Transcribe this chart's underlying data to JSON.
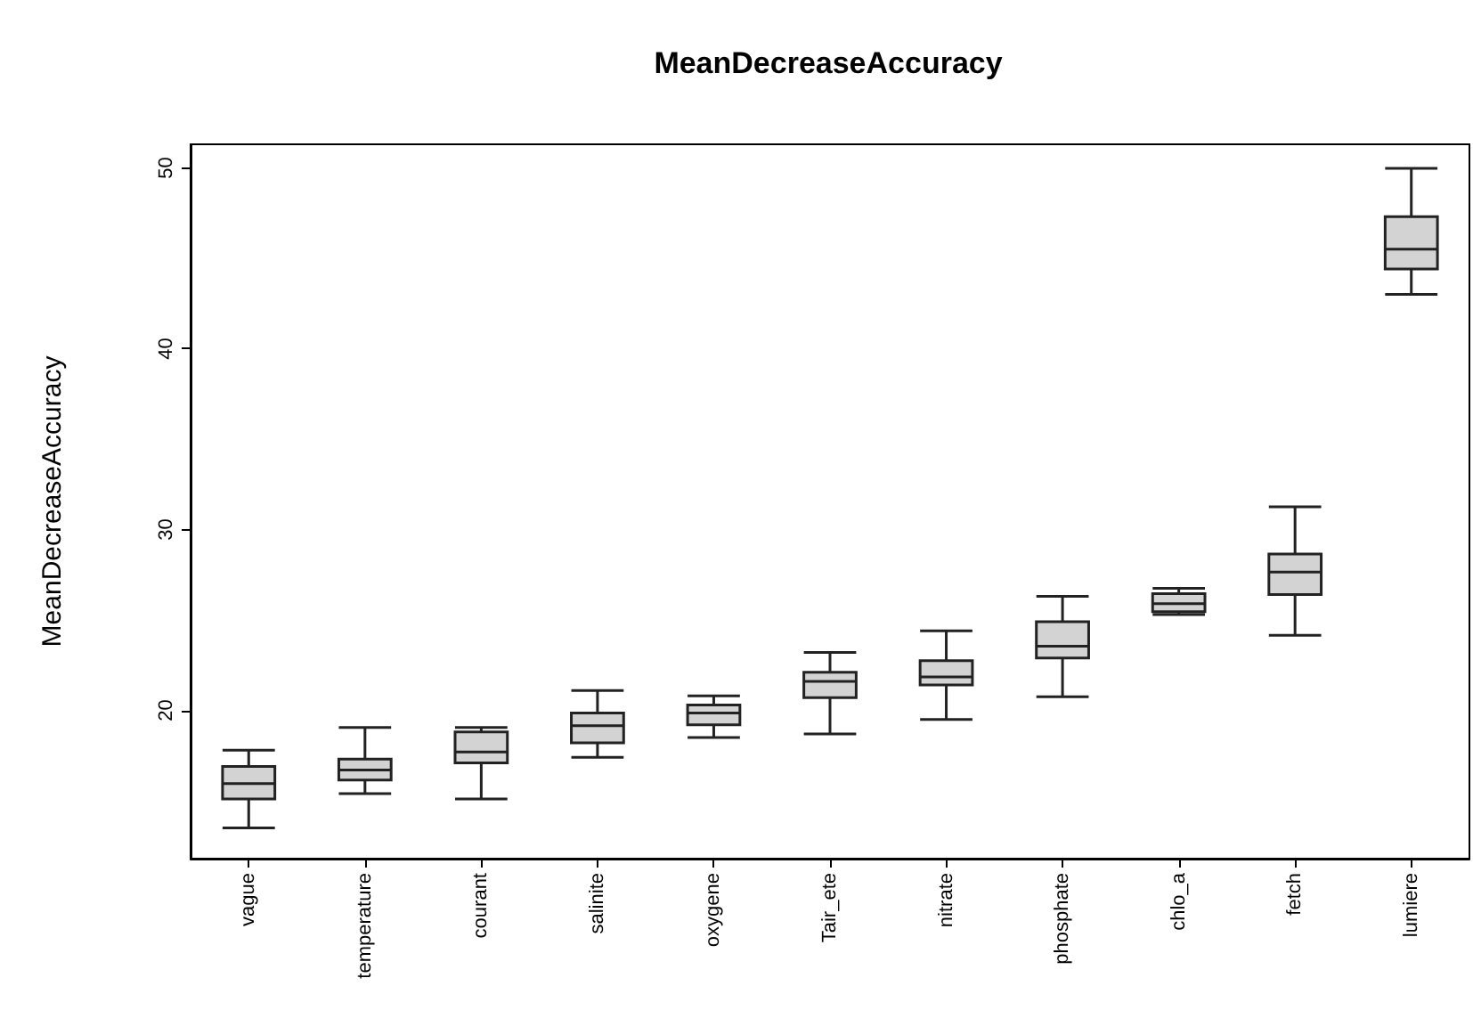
{
  "chart_data": {
    "type": "box",
    "title": "MeanDecreaseAccuracy",
    "ylabel": "MeanDecreaseAccuracy",
    "categories": [
      "vague",
      "temperature",
      "courant",
      "salinite",
      "oxygene",
      "Tair_ete",
      "nitrate",
      "phosphate",
      "chlo_a",
      "fetch",
      "lumiere"
    ],
    "color": "#d3d3d3",
    "boxes": [
      {
        "low": 13.5,
        "q1": 15.1,
        "median": 15.95,
        "q3": 16.9,
        "high": 17.8
      },
      {
        "low": 15.4,
        "q1": 16.15,
        "median": 16.7,
        "q3": 17.3,
        "high": 19.05
      },
      {
        "low": 15.1,
        "q1": 17.1,
        "median": 17.7,
        "q3": 18.8,
        "high": 19.05
      },
      {
        "low": 17.4,
        "q1": 18.2,
        "median": 19.15,
        "q3": 19.85,
        "high": 21.1
      },
      {
        "low": 18.5,
        "q1": 19.2,
        "median": 19.85,
        "q3": 20.3,
        "high": 20.8
      },
      {
        "low": 18.7,
        "q1": 20.7,
        "median": 21.6,
        "q3": 22.1,
        "high": 23.2
      },
      {
        "low": 19.5,
        "q1": 21.4,
        "median": 21.85,
        "q3": 22.75,
        "high": 24.4
      },
      {
        "low": 20.75,
        "q1": 22.9,
        "median": 23.55,
        "q3": 24.9,
        "high": 26.3
      },
      {
        "low": 25.3,
        "q1": 25.45,
        "median": 25.9,
        "q3": 26.45,
        "high": 26.75
      },
      {
        "low": 24.15,
        "q1": 26.4,
        "median": 27.65,
        "q3": 28.65,
        "high": 31.25
      },
      {
        "low": 43.0,
        "q1": 44.4,
        "median": 45.5,
        "q3": 47.3,
        "high": 49.97
      }
    ],
    "ylim": [
      11.8,
      51.3
    ],
    "yticks": [
      20,
      30,
      40,
      50
    ],
    "grid": false
  }
}
